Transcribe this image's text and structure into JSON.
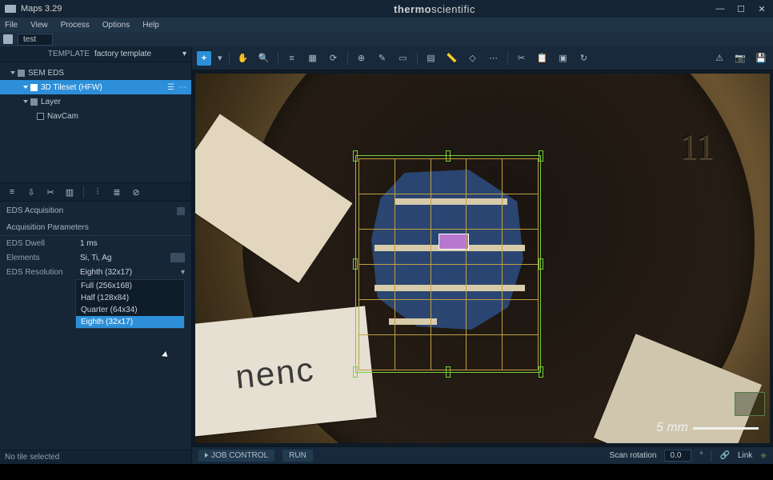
{
  "titlebar": {
    "app_title": "Maps 3.29"
  },
  "brand": {
    "left": "thermo",
    "right": "scientific"
  },
  "menu": {
    "file": "File",
    "view": "View",
    "process": "Process",
    "options": "Options",
    "help": "Help"
  },
  "secondbar": {
    "field1": "test"
  },
  "template": {
    "label": "TEMPLATE",
    "value": "factory template"
  },
  "tree": {
    "root": {
      "label": "SEM EDS"
    },
    "tileset": {
      "label": "3D Tileset (HFW)"
    },
    "layer": {
      "label": "Layer"
    },
    "navcam": {
      "label": "NavCam"
    }
  },
  "section": {
    "acquisition": "EDS Acquisition"
  },
  "params": {
    "header": "Acquisition Parameters",
    "dwell": {
      "label": "EDS Dwell",
      "value": "1 ms"
    },
    "elements": {
      "label": "Elements",
      "value": "Si, Ti, Ag"
    },
    "resolution": {
      "label": "EDS Resolution",
      "value": "Eighth (32x17)"
    }
  },
  "dropdown": {
    "options": [
      {
        "label": "Full (256x168)"
      },
      {
        "label": "Half (128x84)"
      },
      {
        "label": "Quarter (64x34)"
      },
      {
        "label": "Eighth (32x17)"
      }
    ],
    "selected_index": 3
  },
  "lstatus": {
    "text": "No tile selected"
  },
  "bottombar": {
    "jobcontrol": "JOB CONTROL",
    "run": "RUN",
    "scanrot_label": "Scan rotation",
    "scanrot_value": "0.0",
    "link": "Link"
  },
  "viewport": {
    "scale_label": "5 mm",
    "grid": {
      "cols": 5,
      "rows": 6
    },
    "colors": {
      "grid_outer": "#76d040",
      "grid_inner": "#c0a040",
      "sample_blue": "#2b4a7a",
      "roi_purple": "#b878d0",
      "tape": "#e2d7be"
    }
  }
}
